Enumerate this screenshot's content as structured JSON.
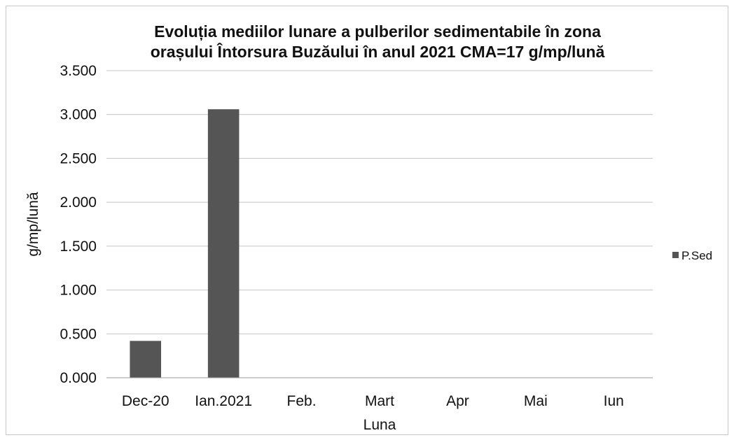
{
  "chart_data": {
    "type": "bar",
    "title": [
      "Evoluția mediilor lunare a pulberilor  sedimentabile în zona",
      "orașului  Întorsura Buzăului în anul 2021  CMA=17 g/mp/lună"
    ],
    "xlabel": "Luna",
    "ylabel": "g/mp/lună",
    "categories": [
      "Dec-20",
      "Ian.2021",
      "Feb.",
      "Mart",
      "Apr",
      "Mai",
      "Iun"
    ],
    "series": [
      {
        "name": "P.Sed",
        "values": [
          0.42,
          3.06,
          null,
          null,
          null,
          null,
          null
        ],
        "color": "#555555"
      }
    ],
    "ylim": [
      0,
      3.5
    ],
    "yticks": [
      "0.000",
      "0.500",
      "1.000",
      "1.500",
      "2.000",
      "2.500",
      "3.000",
      "3.500"
    ],
    "ytick_values": [
      0,
      0.5,
      1.0,
      1.5,
      2.0,
      2.5,
      3.0,
      3.5
    ],
    "grid": true,
    "legend": "right"
  }
}
